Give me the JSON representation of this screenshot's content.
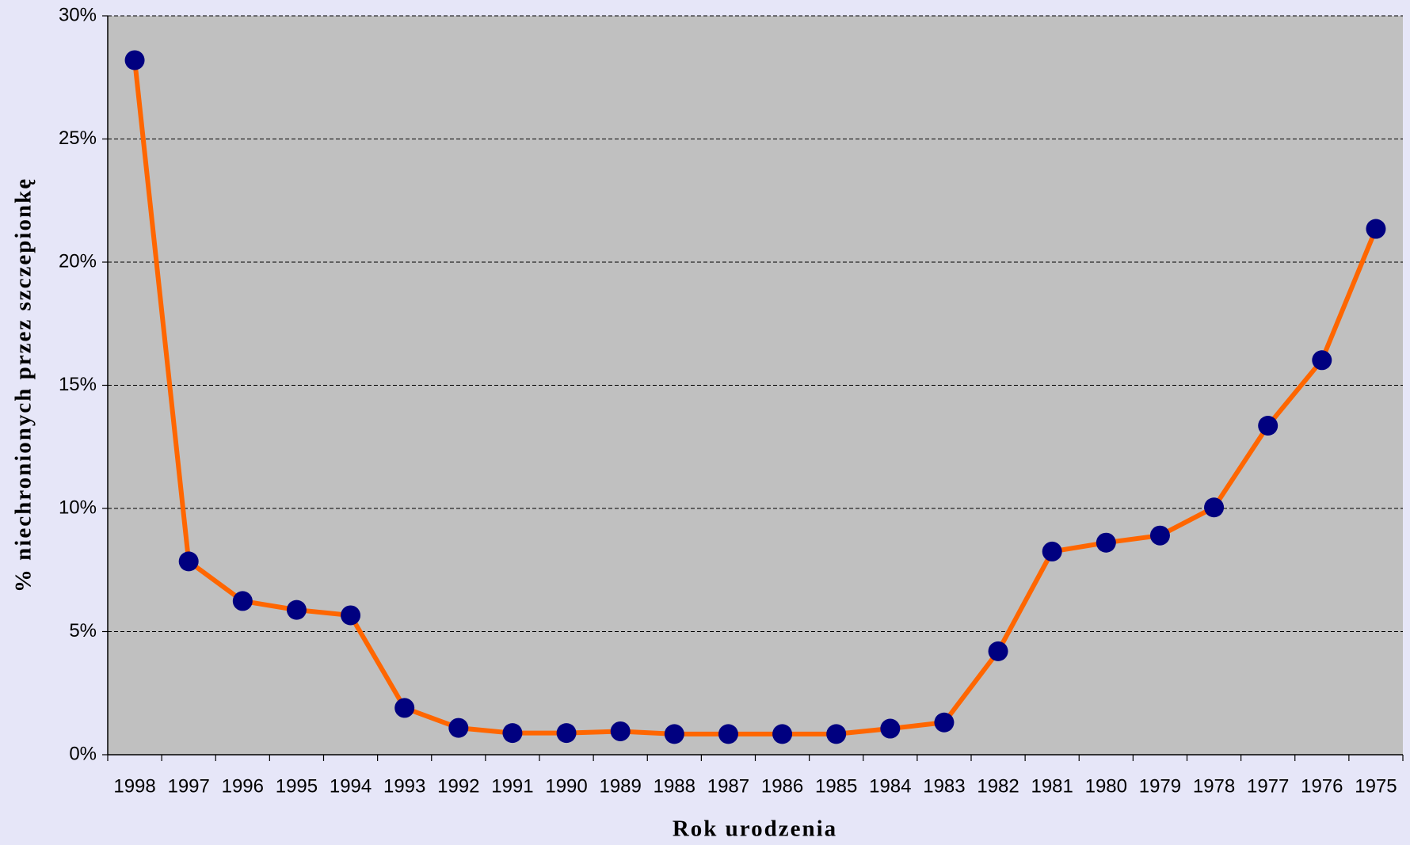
{
  "chart_data": {
    "type": "line",
    "x_label": "Rok urodzenia",
    "y_label": "% niechronionych przez szczepionkę",
    "categories": [
      "1998",
      "1997",
      "1996",
      "1995",
      "1994",
      "1993",
      "1992",
      "1991",
      "1990",
      "1989",
      "1988",
      "1987",
      "1986",
      "1985",
      "1984",
      "1983",
      "1982",
      "1981",
      "1980",
      "1979",
      "1978",
      "1977",
      "1976",
      "1975"
    ],
    "series": [
      {
        "color": "#ff6600",
        "marker_color": "#000080",
        "values": [
          28.2,
          7.85,
          6.24,
          5.88,
          5.66,
          1.9,
          1.09,
          0.88,
          0.88,
          0.95,
          0.84,
          0.84,
          0.84,
          0.84,
          1.06,
          1.31,
          4.2,
          8.25,
          8.61,
          8.9,
          10.04,
          13.36,
          16.02,
          21.35
        ]
      }
    ],
    "ylim": [
      0,
      30
    ],
    "yticks": [
      {
        "value": 0,
        "label": "0%"
      },
      {
        "value": 5,
        "label": "5%"
      },
      {
        "value": 10,
        "label": "10%"
      },
      {
        "value": 15,
        "label": "15%"
      },
      {
        "value": 20,
        "label": "20%"
      },
      {
        "value": 25,
        "label": "25%"
      },
      {
        "value": 30,
        "label": "30%"
      }
    ],
    "grid": true
  }
}
